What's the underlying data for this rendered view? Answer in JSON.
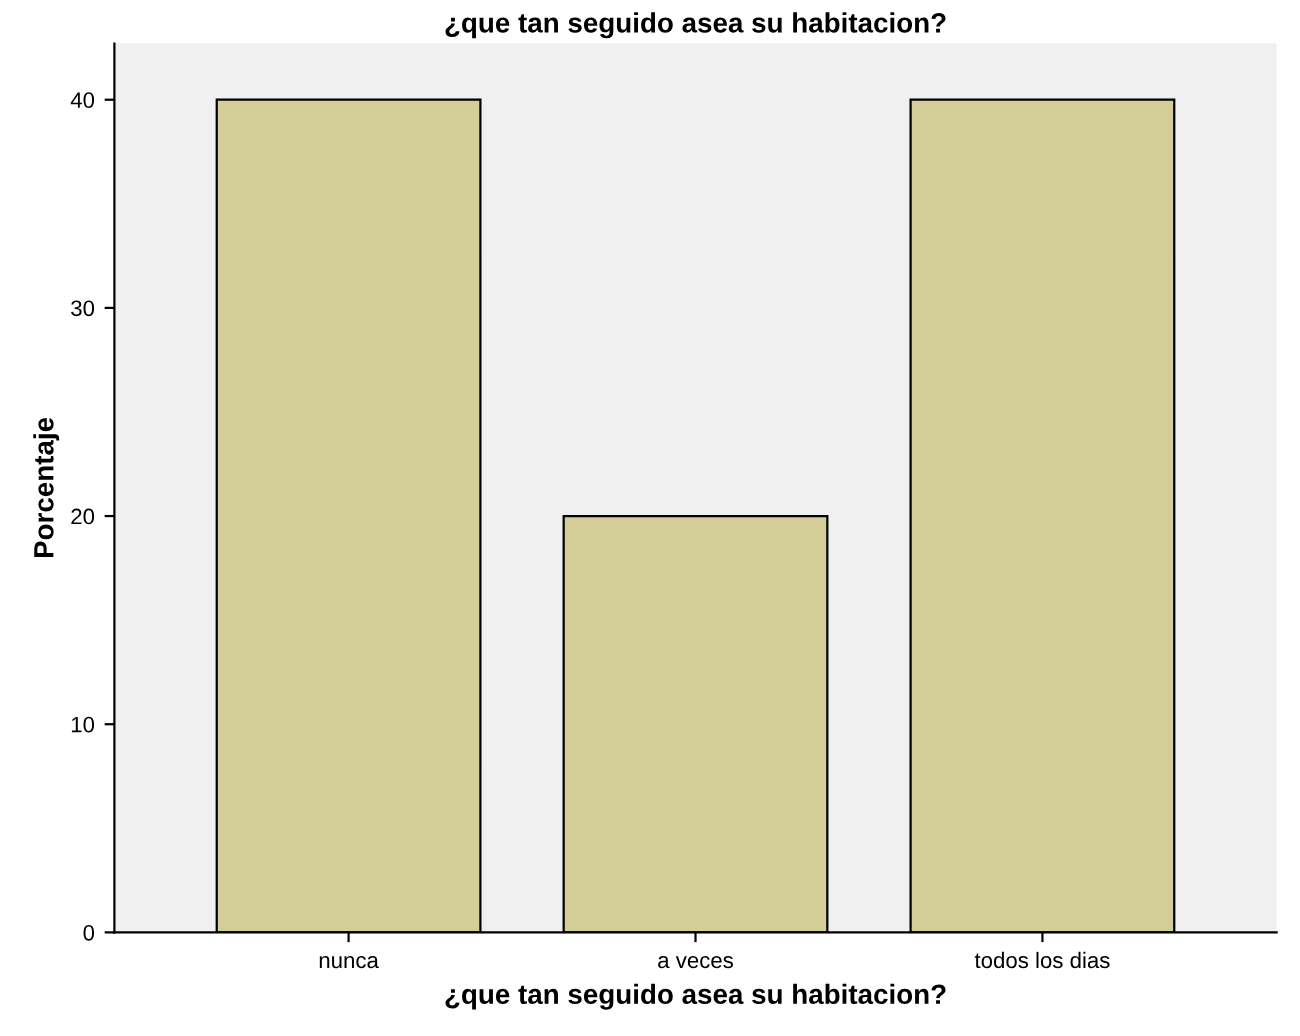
{
  "chart_data": {
    "type": "bar",
    "title": "¿que tan seguido asea su habitacion?",
    "xlabel": "¿que tan seguido asea su habitacion?",
    "ylabel": "Porcentaje",
    "categories": [
      "nunca",
      "a veces",
      "todos los dias"
    ],
    "values": [
      40,
      20,
      40
    ],
    "color": "#d3ce97",
    "ylim": [
      0,
      42.7
    ],
    "yticks": [
      0,
      10,
      20,
      30,
      40
    ],
    "grid": false,
    "legend": false
  }
}
